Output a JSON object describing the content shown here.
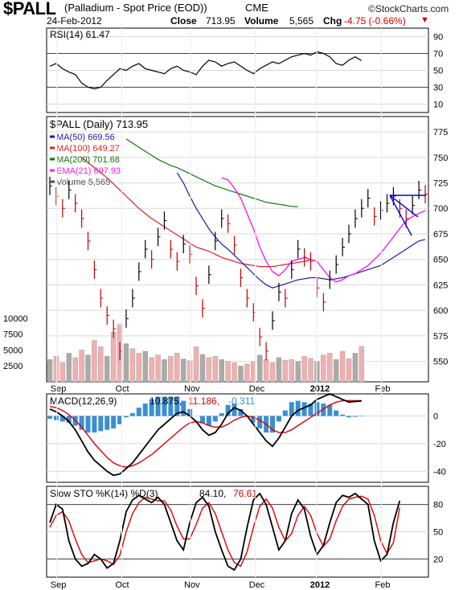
{
  "header": {
    "symbol": "$PALL",
    "description": "(Palladium - Spot Price (EOD))",
    "exchange": "CME",
    "date": "24-Feb-2012",
    "logo": "©StockCharts.com",
    "close_label": "Close",
    "close_value": "713.95",
    "volume_label": "Volume",
    "volume_value": "5,565",
    "chg_label": "Chg",
    "chg_value": "-4.75 (-0.66%)",
    "chg_color": "#cc0000"
  },
  "colors": {
    "ma50": "#1a1aaa",
    "ma100": "#dd2222",
    "ma200": "#117711",
    "ema21": "#ee22ee",
    "volume_down": "#f0b0b0",
    "volume_up": "#aaaaaa",
    "macd_hist": "#3a8fd0",
    "signal": "#dd0000",
    "grid": "#d8d8d8",
    "trendline": "#0000dd"
  },
  "chart_data": [
    {
      "type": "line",
      "title": "RSI(14) 61.47",
      "label": "RSI(14)",
      "value": "61.47",
      "yticks": [
        "90",
        "70",
        "50",
        "30",
        "10"
      ],
      "ylim": [
        0,
        100
      ],
      "reference_lines": [
        70,
        30
      ],
      "series": [
        {
          "values": [
            55,
            58,
            52,
            48,
            45,
            35,
            30,
            28,
            30,
            38,
            45,
            52,
            50,
            55,
            58,
            52,
            50,
            48,
            46,
            52,
            55,
            50,
            48,
            45,
            55,
            62,
            60,
            55,
            58,
            60,
            55,
            50,
            46,
            52,
            56,
            60,
            58,
            62,
            66,
            68,
            70,
            68,
            72,
            70,
            66,
            58,
            56,
            62,
            66,
            61.47
          ]
        }
      ]
    },
    {
      "type": "line",
      "title": "$PALL (Daily) 713.95",
      "label": "$PALL (Daily)",
      "value": "713.95",
      "x_labels": [
        "Sep",
        "Oct",
        "Nov",
        "Dec",
        "2012",
        "Feb"
      ],
      "yticks": [
        "775",
        "750",
        "725",
        "700",
        "675",
        "650",
        "625",
        "600",
        "575",
        "550"
      ],
      "ylim": [
        530,
        790
      ],
      "legend": [
        {
          "label": "MA(50)",
          "value": "669.56"
        },
        {
          "label": "MA(100)",
          "value": "649.27"
        },
        {
          "label": "MA(200)",
          "value": "701.68"
        },
        {
          "label": "EMA(21)",
          "value": "697.93"
        },
        {
          "label": "Volume",
          "value": "5,565"
        }
      ],
      "volume_ticks": [
        "10000",
        "7500",
        "5000",
        "2500"
      ],
      "volume_ylim": [
        0,
        12000
      ],
      "price": [
        722,
        712,
        700,
        718,
        705,
        690,
        668,
        640,
        612,
        595,
        582,
        560,
        592,
        612,
        638,
        660,
        650,
        672,
        688,
        660,
        648,
        665,
        655,
        624,
        602,
        635,
        668,
        690,
        685,
        664,
        632,
        612,
        598,
        574,
        560,
        590,
        618,
        612,
        640,
        660,
        652,
        648,
        622,
        608,
        630,
        645,
        662,
        675,
        690,
        700,
        710,
        692,
        698,
        705,
        712,
        700,
        690,
        703,
        718,
        713.95
      ],
      "ma50": [
        null,
        null,
        null,
        null,
        null,
        null,
        null,
        null,
        null,
        null,
        735,
        725,
        712,
        700,
        690,
        680,
        672,
        665,
        660,
        654,
        648,
        642,
        636,
        630,
        625,
        622,
        624,
        626,
        628,
        630,
        631,
        632,
        632,
        631,
        630,
        631,
        632,
        634,
        636,
        638,
        640,
        642,
        644,
        648,
        652,
        656,
        660,
        664,
        668,
        669.56
      ],
      "ma100": [
        null,
        null,
        null,
        null,
        null,
        750,
        745,
        740,
        735,
        730,
        724,
        718,
        712,
        706,
        700,
        695,
        690,
        686,
        682,
        678,
        674,
        670,
        666,
        662,
        660,
        658,
        655,
        652,
        650,
        648,
        646,
        645,
        644,
        643,
        643,
        643,
        644,
        645,
        646,
        647,
        648,
        649.27
      ],
      "ma200": [
        null,
        null,
        null,
        null,
        null,
        null,
        null,
        null,
        null,
        null,
        null,
        null,
        768,
        764,
        760,
        756,
        752,
        748,
        745,
        742,
        740,
        737,
        734,
        731,
        728,
        725,
        722,
        720,
        718,
        716,
        714,
        712,
        710,
        708,
        706,
        705,
        704,
        703,
        702,
        701.68
      ],
      "ema21": [
        730,
        728,
        720,
        710,
        695,
        680,
        662,
        648,
        638,
        634,
        640,
        648,
        650,
        652,
        650,
        648,
        640,
        632,
        628,
        630,
        634,
        636,
        640,
        644,
        650,
        656,
        664,
        672,
        680,
        688,
        692,
        695,
        697.93
      ],
      "volume": [
        3500,
        4000,
        3000,
        4500,
        3800,
        5000,
        4200,
        6500,
        5500,
        4000,
        7800,
        9000,
        6000,
        5200,
        4500,
        4800,
        3800,
        4200,
        3500,
        4000,
        4500,
        3600,
        3300,
        5500,
        4300,
        3800,
        4000,
        3500,
        3200,
        3000,
        2500,
        2800,
        3200,
        4200,
        3500,
        3000,
        3800,
        3400,
        3500,
        3200,
        4000,
        3700,
        3200,
        4200,
        4500,
        3500,
        4800,
        3600,
        4500,
        5565
      ]
    },
    {
      "type": "line",
      "title": "MACD(12,26,9) 10.875, 11.186, -0.311",
      "label": "MACD(12,26,9)",
      "values_text": [
        "10.875",
        "11.186",
        "-0.311"
      ],
      "yticks": [
        "0",
        "-20",
        "-40"
      ],
      "ylim": [
        -48,
        16
      ],
      "macd": [
        5,
        3,
        0,
        -4,
        -10,
        -18,
        -26,
        -32,
        -36,
        -40,
        -43,
        -42,
        -38,
        -34,
        -28,
        -22,
        -16,
        -10,
        -6,
        -2,
        2,
        3,
        0,
        -4,
        -10,
        -14,
        -12,
        -6,
        2,
        6,
        4,
        0,
        -6,
        -12,
        -18,
        -22,
        -16,
        -8,
        0,
        4,
        6,
        8,
        12,
        14,
        16,
        14,
        12,
        10,
        10.5,
        10.875
      ],
      "signal": [
        7,
        6,
        4,
        1,
        -3,
        -8,
        -14,
        -20,
        -25,
        -30,
        -34,
        -36,
        -37,
        -36,
        -34,
        -31,
        -28,
        -24,
        -20,
        -16,
        -12,
        -8,
        -5,
        -4,
        -5,
        -7,
        -8,
        -8,
        -6,
        -3,
        -1,
        0,
        -1,
        -3,
        -6,
        -10,
        -12,
        -12,
        -10,
        -7,
        -4,
        -1,
        2,
        5,
        8,
        10,
        11,
        11.2,
        11.1,
        11.186
      ],
      "histogram": [
        -2,
        -3,
        -4,
        -5,
        -7,
        -10,
        -12,
        -12,
        -11,
        -10,
        -9,
        -6,
        -1,
        2,
        6,
        9,
        12,
        14,
        14,
        14,
        14,
        11,
        5,
        0,
        -5,
        -7,
        -4,
        2,
        8,
        9,
        5,
        0,
        -5,
        -9,
        -12,
        -12,
        -4,
        4,
        10,
        11,
        10,
        9,
        10,
        9,
        8,
        4,
        1,
        -1,
        -0.6,
        -0.311
      ]
    },
    {
      "type": "line",
      "title": "Slow STO %K(14) %D(3) 84.10, 76.61",
      "label": "Slow STO %K(14) %D(3)",
      "values_text": [
        "84.10",
        "76.61"
      ],
      "x_labels": [
        "Sep",
        "Oct",
        "Nov",
        "Dec",
        "2012",
        "Feb"
      ],
      "yticks": [
        "80",
        "50",
        "20"
      ],
      "ylim": [
        0,
        100
      ],
      "reference_lines": [
        80,
        20
      ],
      "k": [
        60,
        80,
        75,
        40,
        20,
        12,
        15,
        25,
        20,
        10,
        15,
        40,
        72,
        85,
        90,
        86,
        82,
        88,
        80,
        60,
        40,
        30,
        60,
        82,
        88,
        78,
        50,
        30,
        12,
        8,
        20,
        55,
        85,
        92,
        80,
        55,
        30,
        40,
        70,
        85,
        75,
        45,
        25,
        35,
        60,
        82,
        90,
        88,
        92,
        86,
        80,
        40,
        18,
        25,
        60,
        84.1
      ],
      "d": [
        55,
        68,
        72,
        62,
        42,
        25,
        16,
        18,
        20,
        18,
        14,
        24,
        50,
        70,
        82,
        88,
        86,
        84,
        84,
        74,
        56,
        42,
        42,
        58,
        76,
        82,
        70,
        50,
        30,
        16,
        12,
        28,
        55,
        78,
        86,
        76,
        55,
        40,
        48,
        68,
        78,
        68,
        48,
        34,
        42,
        62,
        78,
        86,
        88,
        89,
        86,
        68,
        40,
        26,
        38,
        76.61
      ]
    }
  ]
}
